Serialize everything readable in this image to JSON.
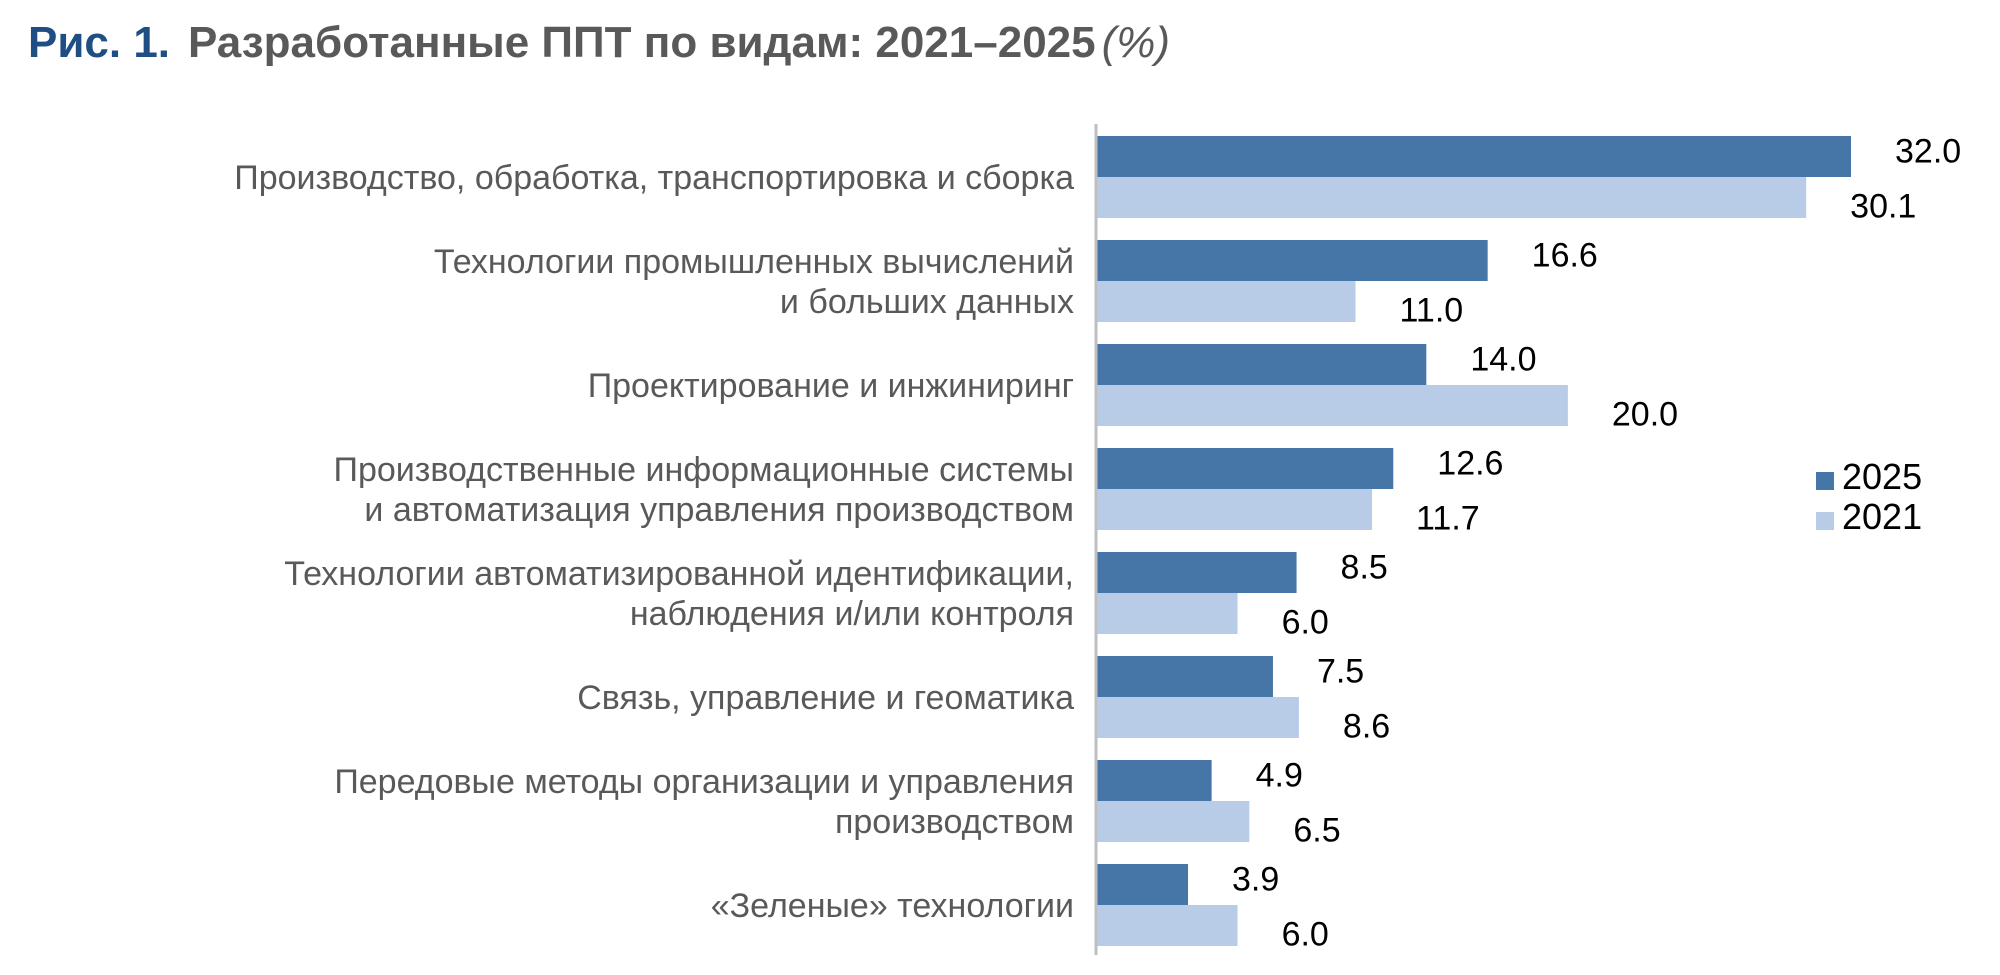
{
  "figure": {
    "label": "Рис. 1.",
    "title": "Разработанные ППТ по видам: 2021–2025",
    "unit": "(%)"
  },
  "colors": {
    "series_2025": "#4675A8",
    "series_2021": "#B8CCE8",
    "axis": "#BFBFBF",
    "title_label": "#1F4E84",
    "title_text": "#595959",
    "category_text": "#595959"
  },
  "chart_data": {
    "type": "bar",
    "orientation": "horizontal",
    "categories": [
      [
        "Производство, обработка, транспортировка и сборка"
      ],
      [
        "Технологии промышленных вычислений",
        "и больших данных"
      ],
      [
        "Проектирование и инжиниринг"
      ],
      [
        "Производственные информационные системы",
        "и автоматизация управления производством"
      ],
      [
        "Технологии автоматизированной идентификации,",
        "наблюдения и/или контроля"
      ],
      [
        "Связь, управление и геоматика"
      ],
      [
        "Передовые методы организации и управления",
        "производством"
      ],
      [
        "«Зеленые» технологии"
      ]
    ],
    "series": [
      {
        "name": "2025",
        "values": [
          32.0,
          16.6,
          14.0,
          12.6,
          8.5,
          7.5,
          4.9,
          3.9
        ],
        "labels": [
          "32.0",
          "16.6",
          "14.0",
          "12.6",
          "8.5",
          "7.5",
          "4.9",
          "3.9"
        ]
      },
      {
        "name": "2021",
        "values": [
          30.1,
          11.0,
          20.0,
          11.7,
          6.0,
          8.6,
          6.5,
          6.0
        ],
        "labels": [
          "30.1",
          "11.0",
          "20.0",
          "11.7",
          "6.0",
          "8.6",
          "6.5",
          "6.0"
        ]
      }
    ],
    "xlim": [
      0,
      32.0
    ],
    "grid": false,
    "legend_position": "right"
  }
}
